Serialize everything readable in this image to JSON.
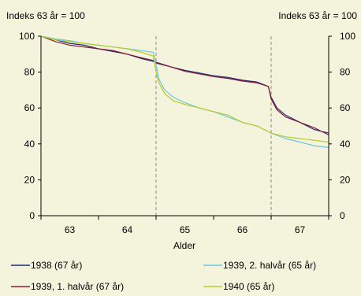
{
  "chart_data": {
    "type": "line",
    "left_axis_title": "Indeks 63 år = 100",
    "right_axis_title": "Indeks 63 år = 100",
    "xlabel": "Alder",
    "x_ticks": [
      "63",
      "64",
      "65",
      "66",
      "67"
    ],
    "xlim": [
      62.5,
      67.5
    ],
    "ylim": [
      0,
      100
    ],
    "y_ticks": [
      "0",
      "20",
      "40",
      "60",
      "80",
      "100"
    ],
    "vlines": [
      64.5,
      66.5
    ],
    "legend_position": "bottom",
    "series": [
      {
        "name": "1938 (67 år)",
        "color": "#1a2a6e",
        "x": [
          62.5,
          62.75,
          63.0,
          63.25,
          63.5,
          63.75,
          64.0,
          64.25,
          64.45,
          64.5,
          64.75,
          65.0,
          65.25,
          65.5,
          65.75,
          66.0,
          66.25,
          66.45,
          66.5,
          66.6,
          66.75,
          67.0,
          67.25,
          67.5
        ],
        "y": [
          100,
          98,
          96,
          95,
          93,
          91.5,
          90,
          87.5,
          86,
          85.5,
          83,
          81,
          79.5,
          78,
          77,
          75.5,
          74.5,
          72,
          66,
          60,
          56,
          52,
          48,
          46
        ]
      },
      {
        "name": "1939, 1. halvår (67 år)",
        "color": "#8a1a3a",
        "x": [
          62.5,
          62.75,
          63.0,
          63.25,
          63.5,
          63.75,
          64.0,
          64.25,
          64.45,
          64.5,
          64.75,
          65.0,
          65.25,
          65.5,
          65.75,
          66.0,
          66.25,
          66.45,
          66.5,
          66.6,
          66.75,
          67.0,
          67.25,
          67.5
        ],
        "y": [
          100,
          97,
          95,
          94,
          93,
          92,
          90,
          88,
          86.5,
          85,
          83,
          80.5,
          79,
          77.5,
          76.5,
          75,
          74,
          72,
          65,
          59,
          55,
          52,
          49,
          45
        ]
      },
      {
        "name": "1939, 2. halvår (65 år)",
        "color": "#6cc6e0",
        "x": [
          62.5,
          62.75,
          63.0,
          63.25,
          63.5,
          63.75,
          64.0,
          64.25,
          64.45,
          64.5,
          64.55,
          64.65,
          64.8,
          65.0,
          65.25,
          65.5,
          65.75,
          66.0,
          66.25,
          66.5,
          66.75,
          67.0,
          67.25,
          67.5
        ],
        "y": [
          100,
          98.5,
          97.5,
          96,
          95,
          94,
          93,
          92,
          91,
          84,
          76,
          70,
          66,
          63,
          60,
          58,
          55,
          52,
          50,
          46,
          43,
          41,
          39,
          38
        ]
      },
      {
        "name": "1940 (65 år)",
        "color": "#b4cc2a",
        "x": [
          62.5,
          62.75,
          63.0,
          63.25,
          63.5,
          63.75,
          64.0,
          64.25,
          64.45,
          64.5,
          64.55,
          64.65,
          64.8,
          65.0,
          65.25,
          65.5,
          65.75,
          66.0,
          66.25,
          66.5,
          66.75,
          67.0,
          67.25,
          67.5
        ],
        "y": [
          100,
          98,
          97,
          96,
          95,
          94,
          93,
          91,
          89,
          80,
          74,
          68,
          64,
          62,
          60,
          58,
          56,
          52,
          50,
          46,
          44,
          43,
          42,
          41
        ]
      }
    ]
  }
}
